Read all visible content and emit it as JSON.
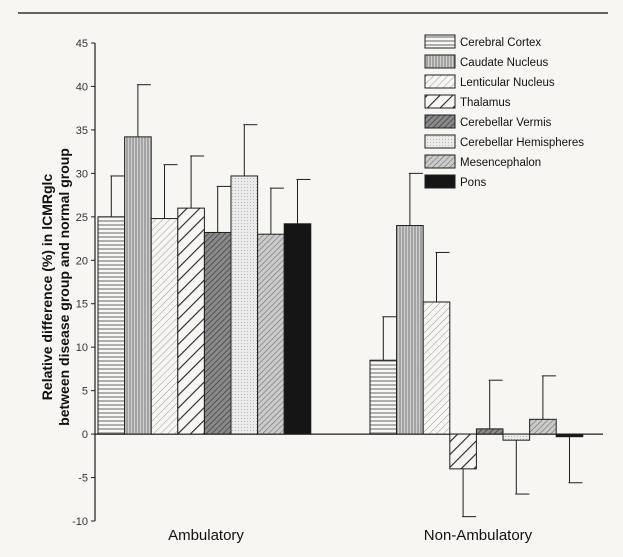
{
  "chart_data": {
    "type": "bar",
    "categories": [
      "Ambulatory",
      "Non-Ambulatory"
    ],
    "ylabel": [
      "Relative difference (%) in lCMRglc",
      "between disease group and normal group"
    ],
    "ylim": [
      -10,
      45
    ],
    "yticks": [
      45,
      40,
      35,
      30,
      25,
      20,
      15,
      10,
      5,
      0,
      -5,
      -10
    ],
    "error_bars": "upper (positive bars) / lower (negative bars)",
    "legend_position": "top-right",
    "series": [
      {
        "name": "Cerebral Cortex",
        "values": [
          25.0,
          8.5
        ],
        "errors": [
          4.7,
          5.0
        ],
        "pattern": "hlines"
      },
      {
        "name": "Caudate Nucleus",
        "values": [
          34.2,
          24.0
        ],
        "errors": [
          6.0,
          6.0
        ],
        "pattern": "vlines"
      },
      {
        "name": "Lenticular Nucleus",
        "values": [
          24.8,
          15.2
        ],
        "errors": [
          6.2,
          5.7
        ],
        "pattern": "fine-diag"
      },
      {
        "name": "Thalamus",
        "values": [
          26.0,
          -4.0
        ],
        "errors": [
          6.0,
          5.5
        ],
        "pattern": "bold-diag"
      },
      {
        "name": "Cerebellar Vermis",
        "values": [
          23.2,
          0.6
        ],
        "errors": [
          5.3,
          5.6
        ],
        "pattern": "dark-diag"
      },
      {
        "name": "Cerebellar Hemispheres",
        "values": [
          29.7,
          -0.7
        ],
        "errors": [
          5.9,
          6.2
        ],
        "pattern": "dots"
      },
      {
        "name": "Mesencephalon",
        "values": [
          23.0,
          1.7
        ],
        "errors": [
          5.3,
          5.0
        ],
        "pattern": "med-diag"
      },
      {
        "name": "Pons",
        "values": [
          24.2,
          -0.3
        ],
        "errors": [
          5.1,
          5.3
        ],
        "pattern": "solid"
      }
    ]
  },
  "colors": {
    "background": "#f7f6f3",
    "ink": "#1e1e1e",
    "solid": "#151515",
    "dark_fill": "#7a7a7a",
    "mid_fill": "#b5b5b5"
  }
}
